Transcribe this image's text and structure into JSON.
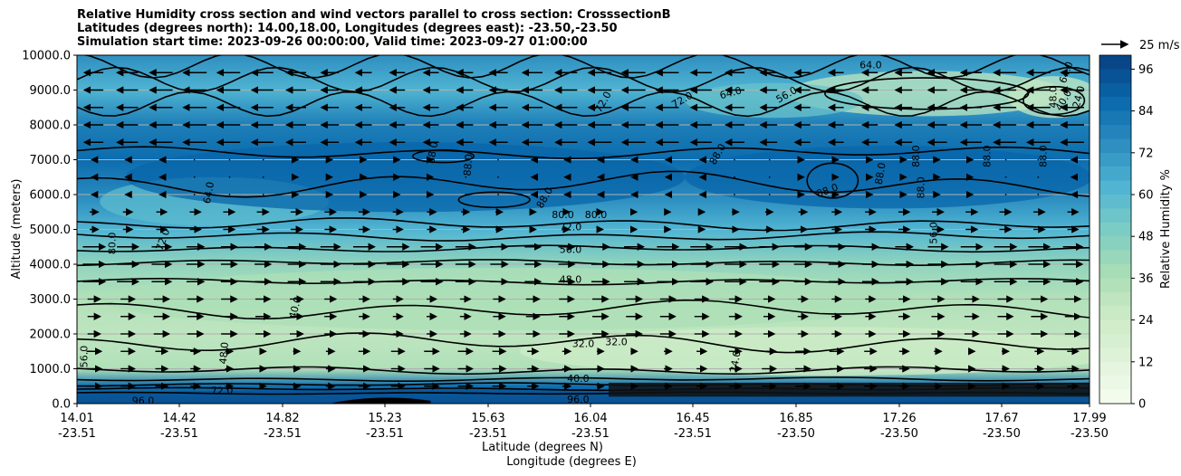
{
  "chart_data": {
    "type": "heatmap",
    "title_lines": [
      "Relative Humidity cross section and wind vectors parallel to cross section: CrosssectionB",
      "Latitudes (degrees north): 14.00,18.00, Longitudes (degrees east): -23.50,-23.50",
      "Simulation start time: 2023-09-26 00:00:00, Valid time: 2023-09-27 01:00:00"
    ],
    "ylabel": "Altitude (meters)",
    "xlabel_lat": "Latitude (degrees N)",
    "xlabel_lon": "Longitude (degrees E)",
    "ylim": [
      0,
      10000
    ],
    "yticks": [
      "0.0",
      "1000.0",
      "2000.0",
      "3000.0",
      "4000.0",
      "5000.0",
      "6000.0",
      "7000.0",
      "8000.0",
      "9000.0",
      "10000.0"
    ],
    "xticks_lat": [
      "14.01",
      "14.42",
      "14.82",
      "15.23",
      "15.63",
      "16.04",
      "16.45",
      "16.85",
      "17.26",
      "17.67",
      "17.99"
    ],
    "xticks_lon": [
      "-23.51",
      "-23.51",
      "-23.51",
      "-23.51",
      "-23.51",
      "-23.51",
      "-23.51",
      "-23.50",
      "-23.50",
      "-23.50",
      "-23.50"
    ],
    "colorbar": {
      "label": "Relative Humidity %",
      "range": [
        0,
        100
      ],
      "ticks": [
        "0",
        "12",
        "24",
        "36",
        "48",
        "60",
        "72",
        "84",
        "96"
      ],
      "colormap": "GnBu"
    },
    "wind_key": {
      "label": "25 m/s",
      "speed": 25
    },
    "grid": "horizontal",
    "rh_profile": [
      {
        "z": 0,
        "rh": 95
      },
      {
        "z": 500,
        "rh": 85
      },
      {
        "z": 1000,
        "rh": 35
      },
      {
        "z": 1500,
        "rh": 32
      },
      {
        "z": 2000,
        "rh": 30
      },
      {
        "z": 3000,
        "rh": 34
      },
      {
        "z": 4000,
        "rh": 44
      },
      {
        "z": 5000,
        "rh": 62
      },
      {
        "z": 6000,
        "rh": 76
      },
      {
        "z": 7000,
        "rh": 86
      },
      {
        "z": 8000,
        "rh": 80
      },
      {
        "z": 9000,
        "rh": 62
      },
      {
        "z": 10000,
        "rh": 74
      }
    ],
    "contour_labels": [
      {
        "text": "64.0",
        "lat": 14.53,
        "z": 6050,
        "angle": -80
      },
      {
        "text": "72.0",
        "lat": 14.35,
        "z": 4700,
        "angle": -70
      },
      {
        "text": "80.0",
        "lat": 14.15,
        "z": 4600,
        "angle": -90
      },
      {
        "text": "40.0",
        "lat": 14.87,
        "z": 2750,
        "angle": -75
      },
      {
        "text": "48.0",
        "lat": 14.59,
        "z": 1450,
        "angle": -85
      },
      {
        "text": "56.0",
        "lat": 14.04,
        "z": 1350,
        "angle": -90
      },
      {
        "text": "72.0",
        "lat": 14.58,
        "z": 350,
        "angle": 0
      },
      {
        "text": "96.0",
        "lat": 14.27,
        "z": 60,
        "angle": 0
      },
      {
        "text": "88.0",
        "lat": 15.41,
        "z": 7200,
        "angle": -80
      },
      {
        "text": "88.0",
        "lat": 15.55,
        "z": 6850,
        "angle": -85
      },
      {
        "text": "88.0",
        "lat": 15.85,
        "z": 5900,
        "angle": -60
      },
      {
        "text": "80.0",
        "lat": 15.92,
        "z": 5400,
        "angle": 0
      },
      {
        "text": "80.0",
        "lat": 16.05,
        "z": 5400,
        "angle": 0
      },
      {
        "text": "72.0",
        "lat": 15.95,
        "z": 5050,
        "angle": 0
      },
      {
        "text": "56.0",
        "lat": 15.95,
        "z": 4400,
        "angle": 0
      },
      {
        "text": "48.0",
        "lat": 15.95,
        "z": 3550,
        "angle": 0
      },
      {
        "text": "32.0",
        "lat": 16.0,
        "z": 1700,
        "angle": 0
      },
      {
        "text": "32.0",
        "lat": 16.13,
        "z": 1750,
        "angle": 0
      },
      {
        "text": "40.0",
        "lat": 15.98,
        "z": 700,
        "angle": 0
      },
      {
        "text": "96.0",
        "lat": 15.98,
        "z": 100,
        "angle": 0
      },
      {
        "text": "72.0",
        "lat": 16.08,
        "z": 8650,
        "angle": -60
      },
      {
        "text": "88.0",
        "lat": 16.53,
        "z": 7150,
        "angle": -60
      },
      {
        "text": "64.0",
        "lat": 16.58,
        "z": 8900,
        "angle": -15
      },
      {
        "text": "72.0",
        "lat": 16.39,
        "z": 8700,
        "angle": -30
      },
      {
        "text": "56.0",
        "lat": 16.8,
        "z": 8850,
        "angle": -30
      },
      {
        "text": "64.0",
        "lat": 17.13,
        "z": 9700,
        "angle": 0
      },
      {
        "text": "88.0",
        "lat": 16.96,
        "z": 6100,
        "angle": -20
      },
      {
        "text": "88.0",
        "lat": 17.17,
        "z": 6600,
        "angle": -80
      },
      {
        "text": "88.0",
        "lat": 17.31,
        "z": 7100,
        "angle": -90
      },
      {
        "text": "88.0",
        "lat": 17.33,
        "z": 6200,
        "angle": -90
      },
      {
        "text": "88.0",
        "lat": 17.59,
        "z": 7100,
        "angle": -90
      },
      {
        "text": "88.0",
        "lat": 17.81,
        "z": 7100,
        "angle": -90
      },
      {
        "text": "56.0",
        "lat": 17.38,
        "z": 4900,
        "angle": -90
      },
      {
        "text": "24.0",
        "lat": 16.6,
        "z": 1200,
        "angle": -80
      },
      {
        "text": "48.0",
        "lat": 17.85,
        "z": 8800,
        "angle": -90
      },
      {
        "text": "40.0",
        "lat": 17.89,
        "z": 8700,
        "angle": -60
      },
      {
        "text": "24.0",
        "lat": 17.95,
        "z": 8800,
        "angle": -75
      },
      {
        "text": "64.0",
        "lat": 17.9,
        "z": 9500,
        "angle": -70
      }
    ]
  }
}
